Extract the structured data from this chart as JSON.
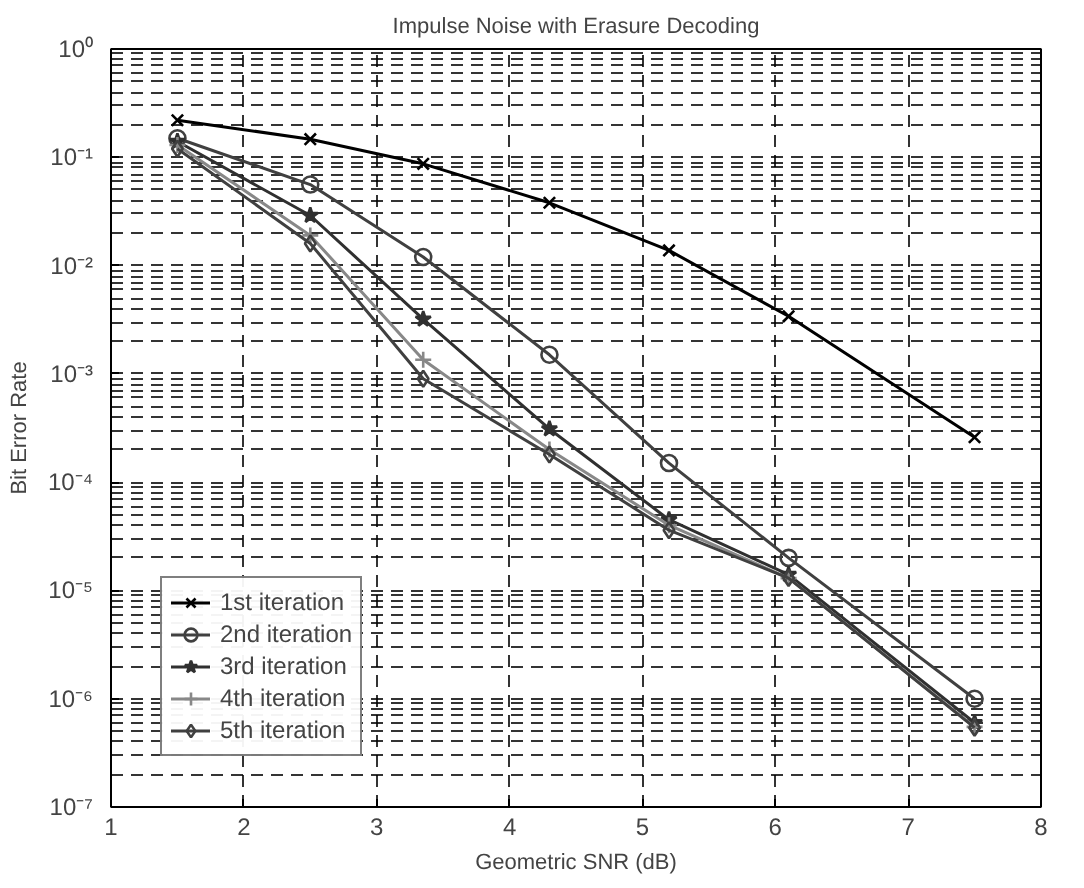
{
  "chart_data": {
    "type": "line",
    "title": "Impulse Noise with Erasure Decoding",
    "xlabel": "Geometric SNR (dB)",
    "ylabel": "Bit Error Rate",
    "x": [
      1.5,
      2.5,
      3.35,
      4.3,
      5.2,
      6.1,
      7.5
    ],
    "series": [
      {
        "name": "1st iteration",
        "color": "#000000",
        "marker": "x",
        "values": [
          0.22,
          0.147,
          0.087,
          0.038,
          0.0138,
          0.0034,
          0.00026
        ]
      },
      {
        "name": "2nd iteration",
        "color": "#404040",
        "marker": "circle",
        "values": [
          0.15,
          0.056,
          0.012,
          0.0015,
          0.00015,
          2e-05,
          1e-06
        ]
      },
      {
        "name": "3rd iteration",
        "color": "#303030",
        "marker": "star",
        "values": [
          0.14,
          0.029,
          0.0032,
          0.00031,
          4.5e-05,
          1.4e-05,
          6e-07
        ]
      },
      {
        "name": "4th iteration",
        "color": "#888888",
        "marker": "cross",
        "values": [
          0.13,
          0.019,
          0.00135,
          0.0002,
          4e-05,
          1.3e-05,
          5.5e-07
        ]
      },
      {
        "name": "5th iteration",
        "color": "#404040",
        "marker": "diamond",
        "values": [
          0.12,
          0.016,
          0.0009,
          0.00018,
          3.6e-05,
          1.3e-05,
          5.4e-07
        ]
      }
    ],
    "log": "y",
    "xlim": [
      1,
      8
    ],
    "ylim": [
      1e-07,
      1
    ],
    "xticks": [
      1,
      2,
      3,
      4,
      5,
      6,
      7,
      8
    ],
    "yticks": [
      {
        "value": 1e-07,
        "label": "10⁻⁷"
      },
      {
        "value": 1e-06,
        "label": "10⁻⁶"
      },
      {
        "value": 1e-05,
        "label": "10⁻⁵"
      },
      {
        "value": 0.0001,
        "label": "10⁻⁴"
      },
      {
        "value": 0.001,
        "label": "10⁻³"
      },
      {
        "value": 0.01,
        "label": "10⁻²"
      },
      {
        "value": 0.1,
        "label": "10⁻¹"
      },
      {
        "value": 1,
        "label": "10⁰"
      }
    ],
    "grid": true,
    "legend": "bottom left",
    "line_style": "solid"
  }
}
